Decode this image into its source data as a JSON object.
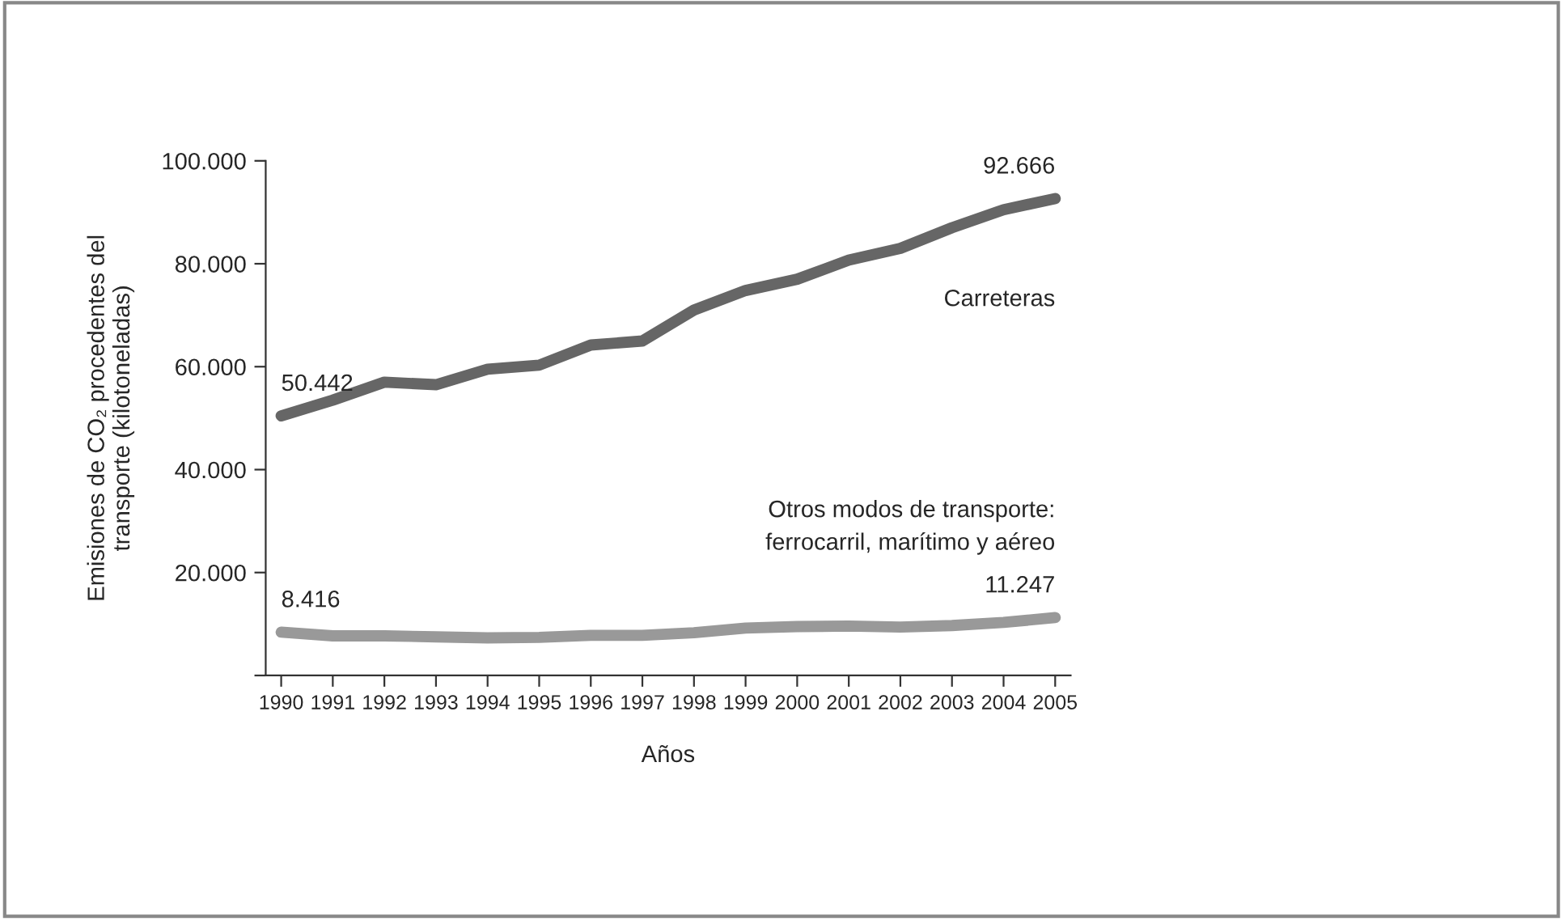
{
  "chart_data": {
    "type": "line",
    "xlabel": "Años",
    "ylabel": "Emisiones de CO₂ procedentes del\ntransporte (kilotoneladas)",
    "x": [
      1990,
      1991,
      1992,
      1993,
      1994,
      1995,
      1996,
      1997,
      1998,
      1999,
      2000,
      2001,
      2002,
      2003,
      2004,
      2005
    ],
    "series": [
      {
        "name": "Carreteras",
        "color": "#666666",
        "values": [
          50442,
          53500,
          57000,
          56500,
          59500,
          60300,
          64200,
          65000,
          71000,
          74800,
          77000,
          80700,
          83000,
          87000,
          90500,
          92666
        ],
        "value_labels": [
          "50.442",
          null,
          null,
          null,
          null,
          null,
          null,
          null,
          null,
          null,
          null,
          null,
          null,
          null,
          null,
          "92.666"
        ]
      },
      {
        "name": "Otros modos de transporte:\nferrocarril, marítimo y aéreo",
        "color": "#999999",
        "values": [
          8416,
          7700,
          7700,
          7500,
          7300,
          7400,
          7800,
          7800,
          8300,
          9200,
          9500,
          9600,
          9400,
          9700,
          10300,
          11247
        ],
        "value_labels": [
          "8.416",
          null,
          null,
          null,
          null,
          null,
          null,
          null,
          null,
          null,
          null,
          null,
          null,
          null,
          null,
          "11.247"
        ]
      }
    ],
    "xlim": [
      1989.7,
      2005.3
    ],
    "xticks": [
      1990,
      1991,
      1992,
      1993,
      1994,
      1995,
      1996,
      1997,
      1998,
      1999,
      2000,
      2001,
      2002,
      2003,
      2004,
      2005
    ],
    "ylim": [
      0,
      100000
    ],
    "yticks": [
      {
        "value": 0,
        "label": null
      },
      {
        "value": 20000,
        "label": "20.000"
      },
      {
        "value": 40000,
        "label": "40.000"
      },
      {
        "value": 60000,
        "label": "60.000"
      },
      {
        "value": 80000,
        "label": "80.000"
      },
      {
        "value": 100000,
        "label": "100.000"
      }
    ],
    "grid": false,
    "legend": false,
    "marker": "none",
    "line_style": "solid"
  }
}
